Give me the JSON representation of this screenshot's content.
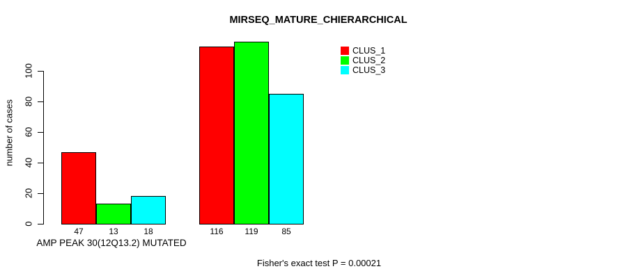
{
  "title": "MIRSEQ_MATURE_CHIERARCHICAL",
  "footer": {
    "text": "Fisher's exact test P = 0.00021"
  },
  "chart_data": {
    "type": "bar",
    "title": "MIRSEQ_MATURE_CHIERARCHICAL",
    "ylabel": "number of cases",
    "xlabel": "",
    "ylim": [
      0,
      100
    ],
    "yticks": [
      0,
      20,
      40,
      60,
      80,
      100
    ],
    "grid": false,
    "legend_position": "top-right",
    "bar_value_labels_shown": true,
    "groups": [
      {
        "label": "AMP PEAK 30(12Q13.2) MUTATED",
        "values": [
          47,
          13,
          18
        ]
      },
      {
        "label": "",
        "values": [
          116,
          119,
          85
        ]
      }
    ],
    "series": [
      {
        "name": "CLUS_1",
        "color": "#FF0000",
        "values": [
          47,
          116
        ]
      },
      {
        "name": "CLUS_2",
        "color": "#00FF00",
        "values": [
          13,
          119
        ]
      },
      {
        "name": "CLUS_3",
        "color": "#00FFFF",
        "values": [
          18,
          85
        ]
      }
    ],
    "annotation": "Fisher's exact test P = 0.00021"
  }
}
